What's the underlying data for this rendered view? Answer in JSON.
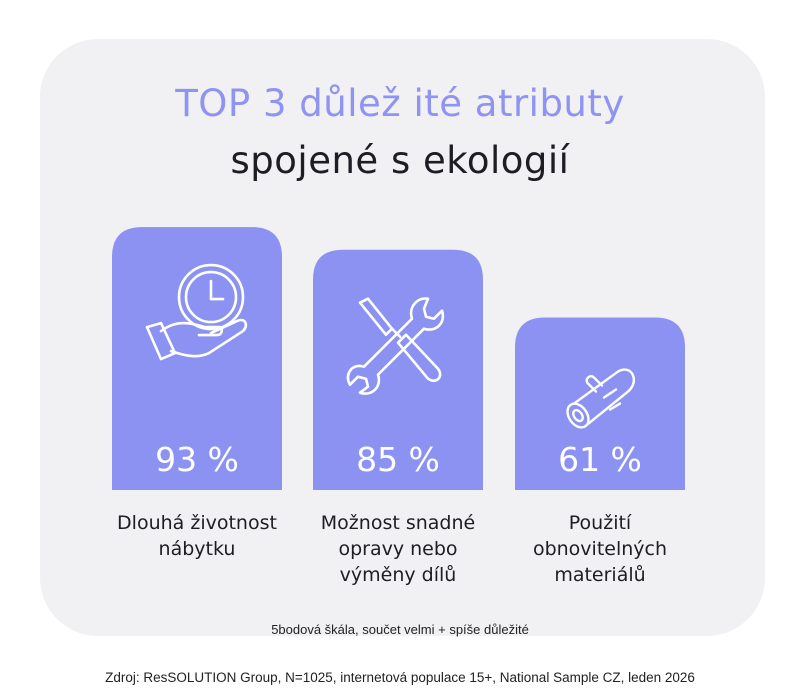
{
  "chart_data": {
    "type": "bar",
    "title": "TOP 3 důlež ité atributy",
    "subtitle": "spojené s ekologií",
    "categories": [
      "Dlouhá životnost nábytku",
      "Možnost snadné opravy nebo výměny dílů",
      "Použití obnovitelných materiálů"
    ],
    "category_lines": [
      [
        "Dlouhá životnost",
        "nábytku"
      ],
      [
        "Možnost snadné",
        "opravy nebo",
        "výměny dílů"
      ],
      [
        "Použití",
        "obnovitelných",
        "materiálů"
      ]
    ],
    "values": [
      93,
      85,
      61
    ],
    "value_labels": [
      "93 %",
      "85 %",
      "61 %"
    ],
    "ylim": [
      0,
      100
    ],
    "icons": [
      "hand-clock-icon",
      "tools-wrench-screwdriver-icon",
      "log-wood-icon"
    ],
    "grid": false,
    "note": "5bodová škála, součet velmi + spíše důležité",
    "source": "Zdroj: ResSOLUTION Group, N=1025, internetová populace 15+, National Sample CZ, leden 2026"
  },
  "colors": {
    "bar": "#8c92f2",
    "card": "#f1f0f3",
    "title_accent": "#8f94f2",
    "text": "#1e1d24"
  }
}
